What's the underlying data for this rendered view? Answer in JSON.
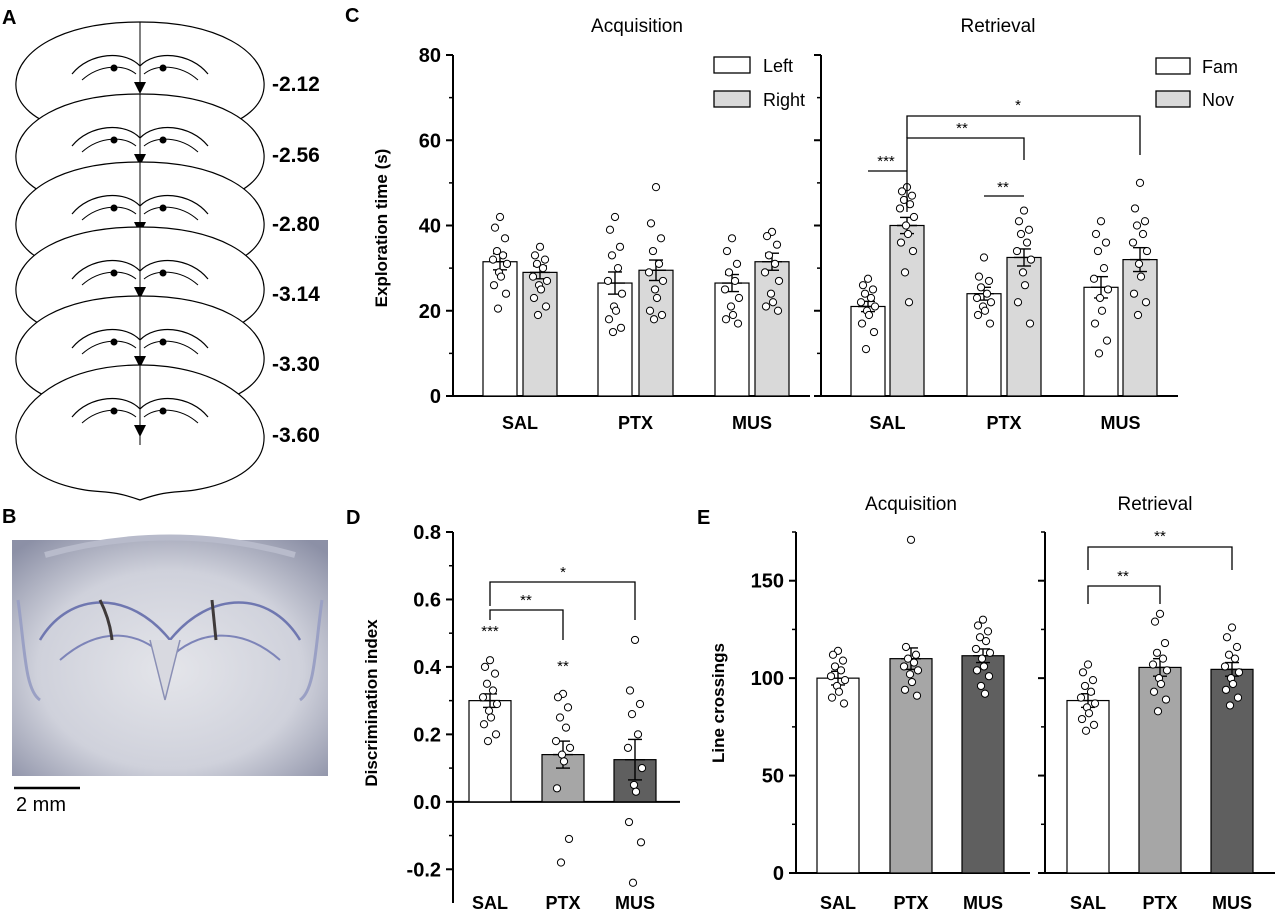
{
  "panels": {
    "A": {
      "letter": "A",
      "coordinates": [
        "-2.12",
        "-2.56",
        "-2.80",
        "-3.14",
        "-3.30",
        "-3.60"
      ]
    },
    "B": {
      "letter": "B",
      "scale_bar_label": "2 mm"
    },
    "C": {
      "letter": "C"
    },
    "D": {
      "letter": "D"
    },
    "E": {
      "letter": "E"
    }
  },
  "colors": {
    "white_bar": "#ffffff",
    "gray_light": "#d9d9d9",
    "gray_mid": "#a6a6a6",
    "gray_dark": "#5f5f5f",
    "axis": "#000000",
    "micrograph_bg": "#c5c7d2"
  },
  "chart_data": [
    {
      "id": "C-acq",
      "type": "bar",
      "title": "Acquisition",
      "ylabel": "Exploration time (s)",
      "ylim": [
        0,
        80
      ],
      "yticks": [
        "0",
        "20",
        "40",
        "60",
        "80"
      ],
      "categories": [
        "SAL",
        "PTX",
        "MUS"
      ],
      "series": [
        {
          "name": "Left",
          "values": [
            31.5,
            26.5,
            26.5
          ],
          "sem": [
            1.9,
            2.6,
            2.0
          ],
          "points": [
            [
              42,
              39.5,
              37,
              34,
              33,
              32,
              31,
              29,
              28,
              26,
              24,
              20.5
            ],
            [
              42,
              39,
              35,
              33,
              30,
              27,
              24,
              21,
              20,
              18,
              16,
              15
            ],
            [
              37,
              34,
              31,
              29,
              27,
              25,
              23,
              21,
              19,
              18,
              17
            ]
          ]
        },
        {
          "name": "Right",
          "values": [
            29,
            29.5,
            31.5
          ],
          "sem": [
            1.5,
            2.4,
            2.0
          ],
          "points": [
            [
              35,
              33,
              32,
              31,
              30,
              28,
              27,
              26,
              25,
              23,
              21,
              19
            ],
            [
              49,
              40.5,
              37,
              34,
              31,
              29,
              27,
              25,
              23,
              20,
              19,
              18
            ],
            [
              38.5,
              37.5,
              35.5,
              33,
              31,
              29,
              27,
              24,
              22,
              21,
              20
            ]
          ]
        }
      ],
      "legend": "top-right"
    },
    {
      "id": "C-ret",
      "type": "bar",
      "title": "Retrieval",
      "ylim": [
        0,
        80
      ],
      "categories": [
        "SAL",
        "PTX",
        "MUS"
      ],
      "series": [
        {
          "name": "Fam",
          "values": [
            21,
            24,
            25.5
          ],
          "sem": [
            1.2,
            1.5,
            2.5
          ],
          "points": [
            [
              27.5,
              26,
              25,
              24,
              23,
              22,
              21,
              20,
              19,
              17,
              15,
              11
            ],
            [
              32.5,
              28,
              27,
              25.5,
              24,
              23,
              22,
              21,
              20,
              19,
              17
            ],
            [
              41,
              38,
              36,
              34,
              30,
              27.5,
              25,
              23,
              20,
              17,
              13,
              10
            ]
          ]
        },
        {
          "name": "Nov",
          "values": [
            40,
            32.5,
            32
          ],
          "sem": [
            1.9,
            2.0,
            2.8
          ],
          "points": [
            [
              49,
              48,
              47,
              46,
              45,
              44,
              42,
              40,
              38,
              36,
              34,
              29,
              22
            ],
            [
              43.5,
              41,
              39,
              38,
              36,
              34,
              32,
              29,
              26,
              22,
              17
            ],
            [
              50,
              44,
              41,
              40,
              38,
              36,
              34,
              31,
              28,
              24,
              22,
              19
            ]
          ]
        }
      ],
      "legend": "top-right",
      "significance": [
        {
          "label": "***",
          "from": "SAL-Fam",
          "to": "SAL-Nov"
        },
        {
          "label": "**",
          "from": "PTX-Fam",
          "to": "PTX-Nov"
        },
        {
          "label": "**",
          "from": "SAL-Nov",
          "to": "PTX-Nov"
        },
        {
          "label": "*",
          "from": "SAL-Nov",
          "to": "MUS-Nov"
        }
      ]
    },
    {
      "id": "D",
      "type": "bar",
      "ylabel": "Discrimination index",
      "ylim": [
        -0.3,
        0.8
      ],
      "yticks": [
        "-0.2",
        "0.0",
        "0.2",
        "0.4",
        "0.6",
        "0.8"
      ],
      "categories": [
        "SAL",
        "PTX",
        "MUS"
      ],
      "values": [
        0.3,
        0.14,
        0.125
      ],
      "sem": [
        0.02,
        0.04,
        0.06
      ],
      "points": [
        [
          0.42,
          0.4,
          0.38,
          0.35,
          0.33,
          0.31,
          0.29,
          0.27,
          0.25,
          0.23,
          0.2,
          0.18
        ],
        [
          0.32,
          0.31,
          0.28,
          0.25,
          0.22,
          0.18,
          0.16,
          0.14,
          0.12,
          0.04,
          -0.11,
          -0.18
        ],
        [
          0.48,
          0.33,
          0.29,
          0.26,
          0.2,
          0.16,
          0.1,
          0.05,
          0.03,
          -0.06,
          -0.12,
          -0.24
        ]
      ],
      "significance": [
        {
          "label": "***",
          "at": "SAL"
        },
        {
          "label": "**",
          "at": "PTX"
        },
        {
          "label": "**",
          "from": "SAL",
          "to": "PTX"
        },
        {
          "label": "*",
          "from": "SAL",
          "to": "MUS"
        }
      ]
    },
    {
      "id": "E-acq",
      "type": "bar",
      "title": "Acquisition",
      "ylabel": "Line crossings",
      "ylim": [
        0,
        175
      ],
      "yticks": [
        "0",
        "50",
        "100",
        "150"
      ],
      "categories": [
        "SAL",
        "PTX",
        "MUS"
      ],
      "values": [
        100,
        110,
        111.5
      ],
      "sem": [
        3.5,
        5.5,
        3.5
      ],
      "points": [
        [
          114,
          112,
          109,
          106,
          104,
          101,
          99,
          96,
          93,
          90,
          87
        ],
        [
          171,
          116,
          112,
          110,
          108,
          106,
          104,
          102,
          98,
          94,
          91
        ],
        [
          130,
          127,
          124,
          121,
          119,
          115,
          113,
          110,
          106,
          104,
          101,
          96,
          92
        ]
      ]
    },
    {
      "id": "E-ret",
      "type": "bar",
      "title": "Retrieval",
      "ylim": [
        0,
        175
      ],
      "categories": [
        "SAL",
        "PTX",
        "MUS"
      ],
      "values": [
        88.5,
        105.5,
        104.5
      ],
      "sem": [
        3.5,
        4.5,
        3.5
      ],
      "points": [
        [
          107,
          103,
          99,
          96,
          93,
          90,
          87,
          85,
          82,
          79,
          76,
          73
        ],
        [
          133,
          129,
          118,
          113,
          110,
          107,
          104,
          100,
          97,
          93,
          89,
          83
        ],
        [
          126,
          121,
          116,
          112,
          110,
          106,
          103,
          100,
          97,
          94,
          90,
          86
        ]
      ],
      "significance": [
        {
          "label": "**",
          "from": "SAL",
          "to": "PTX"
        },
        {
          "label": "**",
          "from": "SAL",
          "to": "MUS"
        }
      ]
    }
  ]
}
